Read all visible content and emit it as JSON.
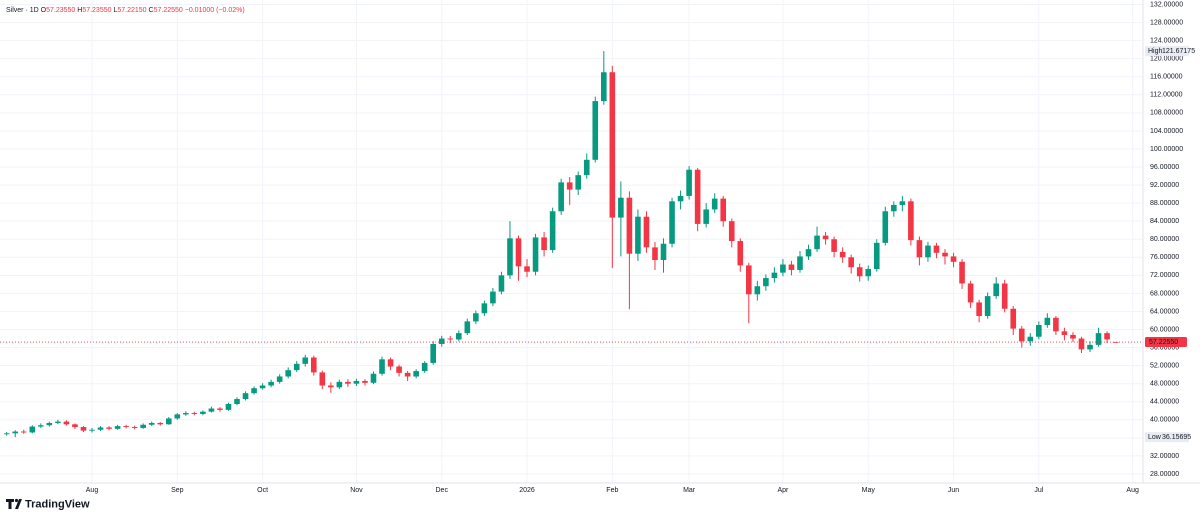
{
  "chart_data": {
    "type": "candlestick",
    "title": "Silver · 1D",
    "ohlc_labels": [
      {
        "key": "O",
        "value": "57.23550"
      },
      {
        "key": "H",
        "value": "57.23550"
      },
      {
        "key": "L",
        "value": "57.22150"
      },
      {
        "key": "C",
        "value": "57.22550"
      }
    ],
    "change": "−0.01000 (−0.02%)",
    "brand": "TradingView",
    "up_color": "#089981",
    "down_color": "#f23645",
    "categories": [
      null,
      null,
      null,
      null,
      null,
      null,
      null,
      null,
      null,
      null,
      "Aug",
      null,
      null,
      null,
      null,
      null,
      null,
      null,
      null,
      null,
      "Sep",
      null,
      null,
      null,
      null,
      null,
      null,
      null,
      null,
      null,
      "Oct",
      null,
      null,
      null,
      null,
      null,
      null,
      null,
      null,
      null,
      null,
      "Nov",
      null,
      null,
      null,
      null,
      null,
      null,
      null,
      null,
      null,
      "Dec",
      null,
      null,
      null,
      null,
      null,
      null,
      null,
      null,
      null,
      "2026",
      null,
      null,
      null,
      null,
      null,
      null,
      null,
      null,
      null,
      "Feb",
      null,
      null,
      null,
      null,
      null,
      null,
      null,
      null,
      "Mar",
      null,
      null,
      null,
      null,
      null,
      null,
      null,
      null,
      null,
      null,
      "Apr",
      null,
      null,
      null,
      null,
      null,
      null,
      null,
      null,
      null,
      "May",
      null,
      null,
      null,
      null,
      null,
      null,
      null,
      null,
      null,
      "Jun",
      null,
      null,
      null,
      null,
      null,
      null,
      null,
      null,
      null,
      "Jul",
      null,
      null,
      null,
      null,
      null,
      null,
      null,
      null,
      null,
      null,
      "Aug"
    ],
    "open": [
      36.8,
      37.0,
      37.4,
      37.2,
      38.5,
      38.8,
      39.3,
      39.6,
      39.0,
      38.4,
      37.6,
      37.8,
      38.3,
      38.0,
      38.6,
      38.4,
      38.2,
      38.9,
      39.3,
      39.0,
      40.3,
      41.2,
      41.5,
      41.3,
      41.8,
      42.5,
      42.2,
      43.5,
      44.6,
      45.9,
      47.0,
      47.6,
      48.4,
      49.6,
      51.0,
      52.4,
      53.8,
      50.5,
      47.6,
      47.2,
      48.4,
      48.0,
      48.6,
      48.2,
      50.2,
      53.4,
      51.8,
      50.4,
      49.6,
      50.8,
      52.6,
      56.8,
      58.0,
      57.8,
      59.2,
      61.8,
      63.6,
      65.8,
      68.4,
      72.0,
      80.2,
      74.0,
      72.8,
      80.4,
      77.6,
      86.2,
      92.6,
      91.0,
      94.2,
      97.6,
      110.6,
      117.0,
      84.8,
      89.2,
      76.8,
      85.0,
      78.2,
      75.4,
      79.0,
      88.4,
      89.6,
      95.4,
      83.4,
      86.6,
      89.0,
      84.0,
      79.6,
      74.2,
      67.8,
      69.6,
      71.4,
      72.6,
      74.4,
      73.2,
      76.2,
      77.8,
      80.8,
      80.0,
      77.2,
      76.0,
      73.8,
      71.8,
      73.4,
      79.2,
      86.2,
      87.6,
      88.4,
      79.8,
      76.0,
      78.6,
      77.0,
      76.2,
      75.0,
      70.2,
      66.0,
      63.0,
      67.4,
      70.2,
      64.6,
      60.2,
      57.4,
      58.4,
      61.0,
      62.6,
      59.6,
      58.8,
      58.0,
      55.6,
      56.6,
      59.2,
      57.2355,
      null,
      null
    ],
    "high": [
      37.3,
      37.7,
      37.8,
      38.8,
      39.2,
      39.6,
      40.0,
      39.9,
      39.2,
      38.6,
      38.2,
      38.6,
      38.6,
      38.9,
      38.9,
      38.7,
      39.2,
      39.6,
      39.5,
      40.6,
      41.5,
      41.9,
      41.8,
      42.1,
      42.9,
      42.8,
      43.8,
      45.0,
      46.3,
      47.4,
      48.1,
      48.9,
      50.1,
      51.6,
      53.0,
      54.4,
      54.2,
      50.9,
      48.3,
      48.9,
      49.0,
      49.1,
      49.0,
      50.7,
      54.0,
      53.8,
      52.2,
      50.8,
      51.2,
      53.0,
      57.4,
      58.6,
      58.6,
      59.8,
      62.4,
      64.2,
      66.4,
      69.2,
      72.8,
      84.0,
      80.8,
      75.6,
      81.2,
      81.6,
      87.0,
      93.4,
      93.8,
      95.0,
      99.0,
      111.6,
      121.67175,
      118.4,
      92.8,
      90.6,
      86.6,
      86.2,
      79.4,
      80.2,
      89.2,
      90.8,
      96.2,
      95.8,
      88.0,
      90.2,
      89.6,
      84.6,
      80.2,
      74.8,
      70.8,
      72.2,
      73.8,
      75.6,
      75.2,
      77.4,
      78.8,
      82.8,
      81.6,
      80.6,
      78.2,
      76.6,
      74.6,
      74.2,
      80.0,
      87.2,
      88.4,
      89.6,
      89.0,
      80.6,
      79.4,
      79.2,
      77.8,
      77.0,
      75.6,
      70.8,
      66.6,
      68.2,
      71.6,
      71.0,
      65.2,
      60.8,
      59.2,
      61.8,
      63.6,
      63.0,
      60.4,
      59.4,
      58.4,
      57.4,
      60.4,
      59.6,
      57.2355,
      null,
      null
    ],
    "low": [
      36.5,
      36.16,
      36.9,
      37.0,
      38.2,
      38.5,
      39.0,
      38.7,
      38.0,
      37.3,
      37.2,
      37.5,
      37.7,
      37.8,
      38.1,
      37.9,
      38.0,
      38.6,
      38.7,
      38.9,
      40.0,
      40.9,
      41.0,
      41.0,
      41.6,
      41.8,
      42.0,
      43.2,
      44.3,
      45.6,
      46.7,
      47.2,
      48.0,
      49.2,
      50.6,
      51.8,
      49.8,
      46.8,
      46.0,
      46.8,
      47.3,
      47.5,
      47.6,
      47.9,
      49.8,
      51.0,
      49.6,
      48.6,
      49.2,
      50.4,
      52.2,
      56.2,
      57.0,
      57.4,
      58.8,
      61.2,
      63.0,
      65.2,
      67.8,
      71.2,
      70.8,
      71.6,
      72.0,
      76.2,
      77.0,
      85.4,
      87.6,
      89.8,
      93.4,
      97.0,
      109.8,
      73.6,
      76.2,
      64.5,
      75.2,
      77.0,
      73.2,
      72.6,
      78.2,
      86.6,
      88.8,
      81.8,
      82.6,
      85.8,
      82.8,
      78.2,
      72.8,
      61.4,
      66.4,
      68.6,
      70.4,
      71.8,
      72.0,
      72.6,
      75.4,
      77.2,
      78.8,
      76.0,
      74.8,
      72.4,
      70.6,
      70.8,
      72.8,
      78.6,
      85.0,
      86.2,
      78.6,
      74.2,
      75.0,
      75.8,
      74.4,
      73.8,
      69.0,
      64.8,
      61.6,
      62.4,
      66.8,
      63.8,
      58.8,
      56.0,
      56.4,
      57.8,
      60.4,
      58.8,
      57.6,
      57.2,
      54.8,
      55.0,
      56.2,
      57.0,
      57.2215,
      null,
      null
    ],
    "close": [
      37.0,
      37.4,
      37.2,
      38.5,
      38.8,
      39.3,
      39.6,
      39.0,
      38.4,
      37.6,
      37.8,
      38.3,
      38.0,
      38.6,
      38.4,
      38.2,
      38.9,
      39.3,
      39.0,
      40.3,
      41.2,
      41.5,
      41.3,
      41.8,
      42.5,
      42.2,
      43.5,
      44.6,
      45.9,
      47.0,
      47.6,
      48.4,
      49.6,
      51.0,
      52.4,
      53.8,
      50.5,
      47.6,
      47.2,
      48.4,
      48.0,
      48.6,
      48.2,
      50.2,
      53.4,
      51.8,
      50.4,
      49.6,
      50.8,
      52.6,
      56.8,
      58.0,
      57.8,
      59.2,
      61.8,
      63.6,
      65.8,
      68.4,
      72.0,
      80.2,
      74.0,
      72.8,
      80.4,
      77.6,
      86.2,
      92.6,
      91.0,
      94.2,
      97.6,
      110.6,
      117.0,
      84.8,
      89.2,
      76.8,
      85.0,
      78.2,
      75.4,
      79.0,
      88.4,
      89.6,
      95.4,
      83.4,
      86.6,
      89.0,
      84.0,
      79.6,
      74.2,
      67.8,
      69.6,
      71.4,
      72.6,
      74.4,
      73.2,
      76.2,
      77.8,
      80.8,
      80.0,
      77.2,
      76.0,
      73.8,
      71.8,
      73.4,
      79.2,
      86.2,
      87.6,
      88.4,
      79.8,
      76.0,
      78.6,
      77.0,
      76.2,
      75.0,
      70.2,
      66.0,
      63.0,
      67.4,
      70.2,
      64.6,
      60.2,
      57.4,
      58.4,
      61.0,
      62.6,
      59.6,
      58.8,
      58.0,
      55.6,
      56.6,
      59.2,
      57.8,
      57.2255,
      null,
      null
    ],
    "ylim": [
      26,
      133
    ],
    "yticks": [
      {
        "value": 28,
        "label": "28.00000"
      },
      {
        "value": 32,
        "label": "32.00000"
      },
      {
        "value": 36,
        "label": "36.00000"
      },
      {
        "value": 40,
        "label": "40.00000"
      },
      {
        "value": 44,
        "label": "44.00000"
      },
      {
        "value": 48,
        "label": "48.00000"
      },
      {
        "value": 52,
        "label": "52.00000"
      },
      {
        "value": 56,
        "label": "56.00000"
      },
      {
        "value": 60,
        "label": "60.00000"
      },
      {
        "value": 64,
        "label": "64.00000"
      },
      {
        "value": 68,
        "label": "68.00000"
      },
      {
        "value": 72,
        "label": "72.00000"
      },
      {
        "value": 76,
        "label": "76.00000"
      },
      {
        "value": 80,
        "label": "80.00000"
      },
      {
        "value": 84,
        "label": "84.00000"
      },
      {
        "value": 88,
        "label": "88.00000"
      },
      {
        "value": 92,
        "label": "92.00000"
      },
      {
        "value": 96,
        "label": "96.00000"
      },
      {
        "value": 100,
        "label": "100.00000"
      },
      {
        "value": 104,
        "label": "104.00000"
      },
      {
        "value": 108,
        "label": "108.00000"
      },
      {
        "value": 112,
        "label": "112.00000"
      },
      {
        "value": 116,
        "label": "116.00000"
      },
      {
        "value": 120,
        "label": "120.00000"
      },
      {
        "value": 124,
        "label": "124.00000"
      },
      {
        "value": 128,
        "label": "128.00000"
      },
      {
        "value": 132,
        "label": "132.00000"
      }
    ],
    "grid": true,
    "high_marker": {
      "name": "High",
      "value": 121.67175,
      "label": "121.67175"
    },
    "low_marker": {
      "name": "Low",
      "value": 36.15695,
      "label": "36.15695"
    },
    "last_price": {
      "value": 57.2255,
      "label": "57.22550",
      "color": "#f23645"
    }
  }
}
